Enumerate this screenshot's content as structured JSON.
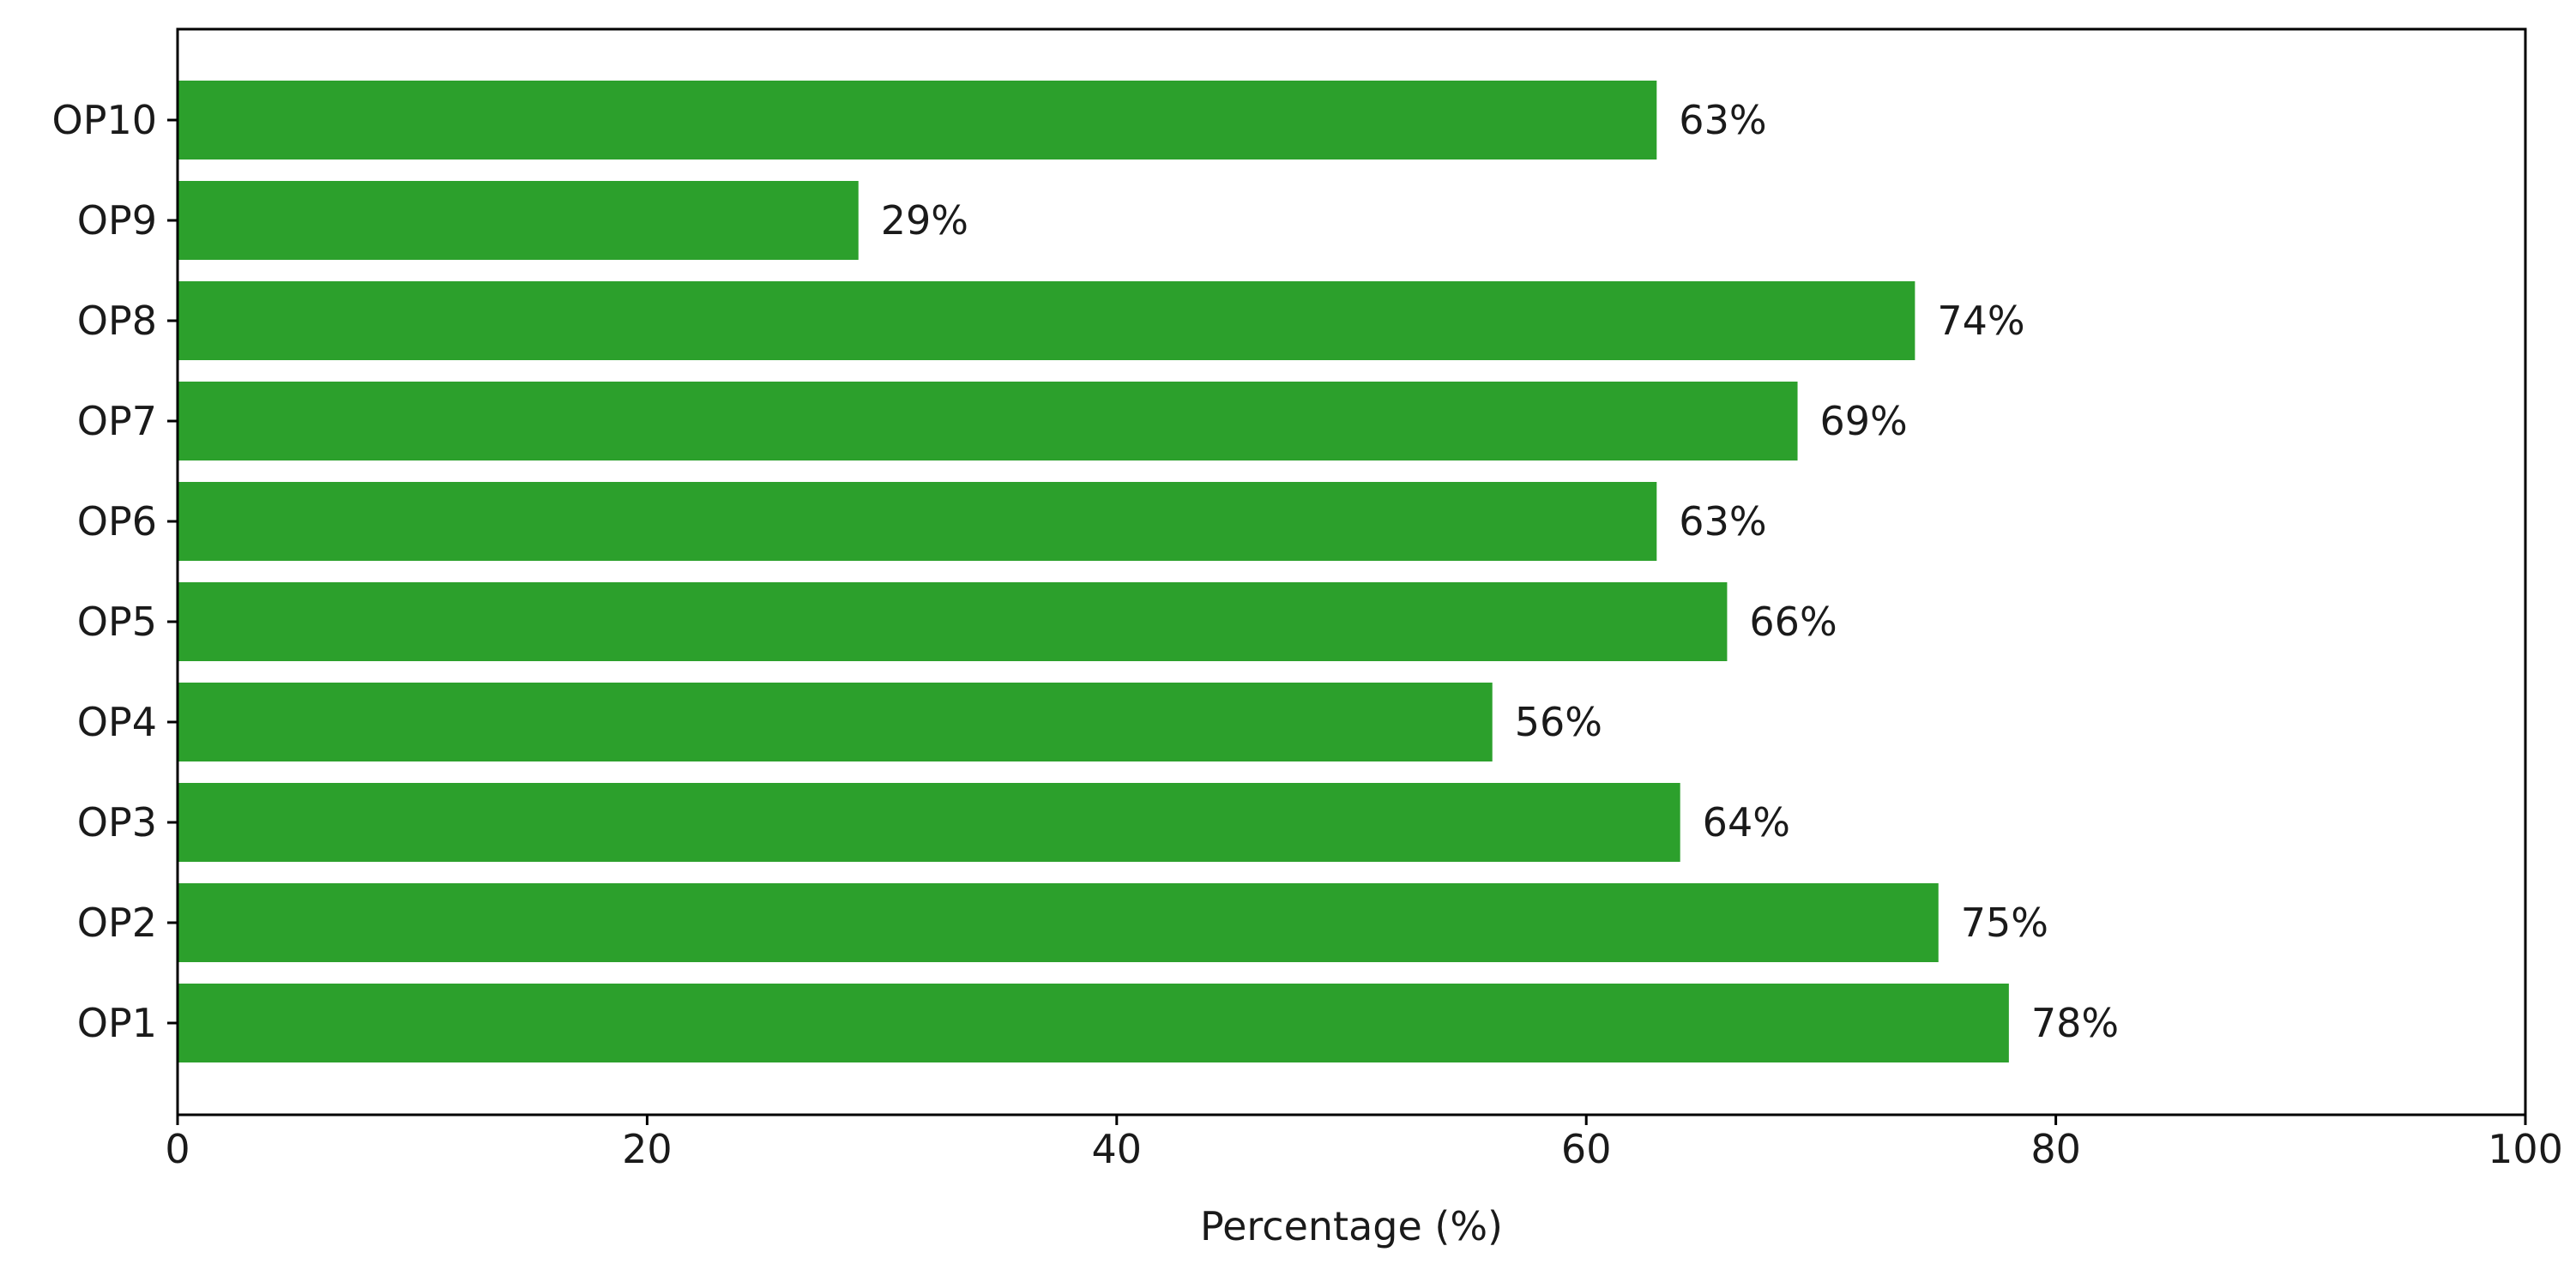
{
  "chart_data": {
    "type": "bar",
    "orientation": "horizontal",
    "categories": [
      "OP1",
      "OP2",
      "OP3",
      "OP4",
      "OP5",
      "OP6",
      "OP7",
      "OP8",
      "OP9",
      "OP10"
    ],
    "values": [
      78,
      75,
      64,
      56,
      66,
      63,
      69,
      74,
      29,
      63
    ],
    "data_labels": [
      "78%",
      "75%",
      "64%",
      "56%",
      "66%",
      "63%",
      "69%",
      "74%",
      "29%",
      "63%"
    ],
    "title": "",
    "xlabel": "Percentage (%)",
    "ylabel": "",
    "xlim": [
      0,
      100
    ],
    "xticks": [
      0,
      20,
      40,
      60,
      80,
      100
    ],
    "xtick_labels": [
      "0",
      "20",
      "40",
      "60",
      "80",
      "100"
    ],
    "grid": false,
    "legend": "none",
    "bar_color": "#2ca02c"
  }
}
